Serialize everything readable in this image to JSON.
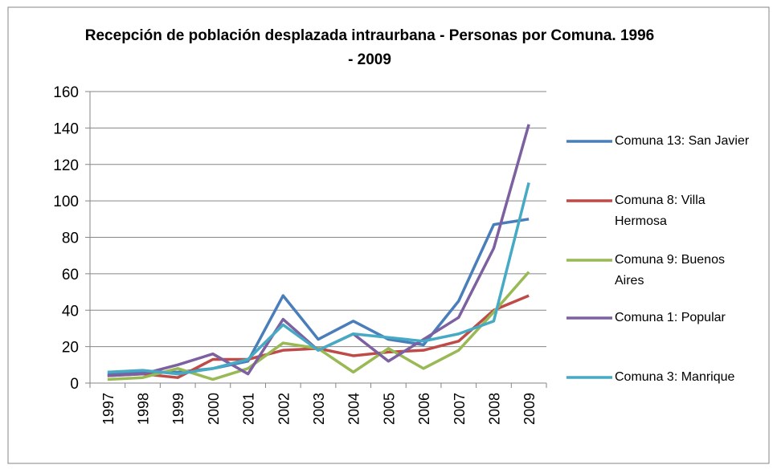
{
  "chart_data": {
    "type": "line",
    "title": "Recepción de población desplazada intraurbana - Personas  por Comuna. 1996 - 2009",
    "categories": [
      "1997",
      "1998",
      "1999",
      "2000",
      "2001",
      "2002",
      "2003",
      "2004",
      "2005",
      "2006",
      "2007",
      "2008",
      "2009"
    ],
    "series": [
      {
        "name": "Comuna 13: San Javier",
        "color": "#4a7ebb",
        "values": [
          5,
          6,
          6,
          8,
          12,
          48,
          24,
          34,
          24,
          21,
          45,
          87,
          90
        ]
      },
      {
        "name": "Comuna 8: Villa Hermosa",
        "color": "#be4b48",
        "values": [
          4,
          5,
          3,
          13,
          13,
          18,
          19,
          15,
          17,
          18,
          23,
          40,
          48
        ]
      },
      {
        "name": "Comuna 9: Buenos Aires",
        "color": "#98b954",
        "values": [
          2,
          3,
          8,
          2,
          8,
          22,
          19,
          6,
          19,
          8,
          18,
          39,
          61
        ]
      },
      {
        "name": "Comuna 1: Popular",
        "color": "#7d60a0",
        "values": [
          4,
          5,
          10,
          16,
          5,
          35,
          18,
          27,
          12,
          24,
          36,
          74,
          142
        ]
      },
      {
        "name": "Comuna 3: Manrique",
        "color": "#46aac5",
        "values": [
          6,
          7,
          5,
          8,
          13,
          32,
          18,
          27,
          25,
          23,
          27,
          34,
          110
        ]
      }
    ],
    "ylim": [
      0,
      160
    ],
    "yticks": [
      0,
      20,
      40,
      60,
      80,
      100,
      120,
      140,
      160
    ],
    "grid": true,
    "legend": "right"
  }
}
